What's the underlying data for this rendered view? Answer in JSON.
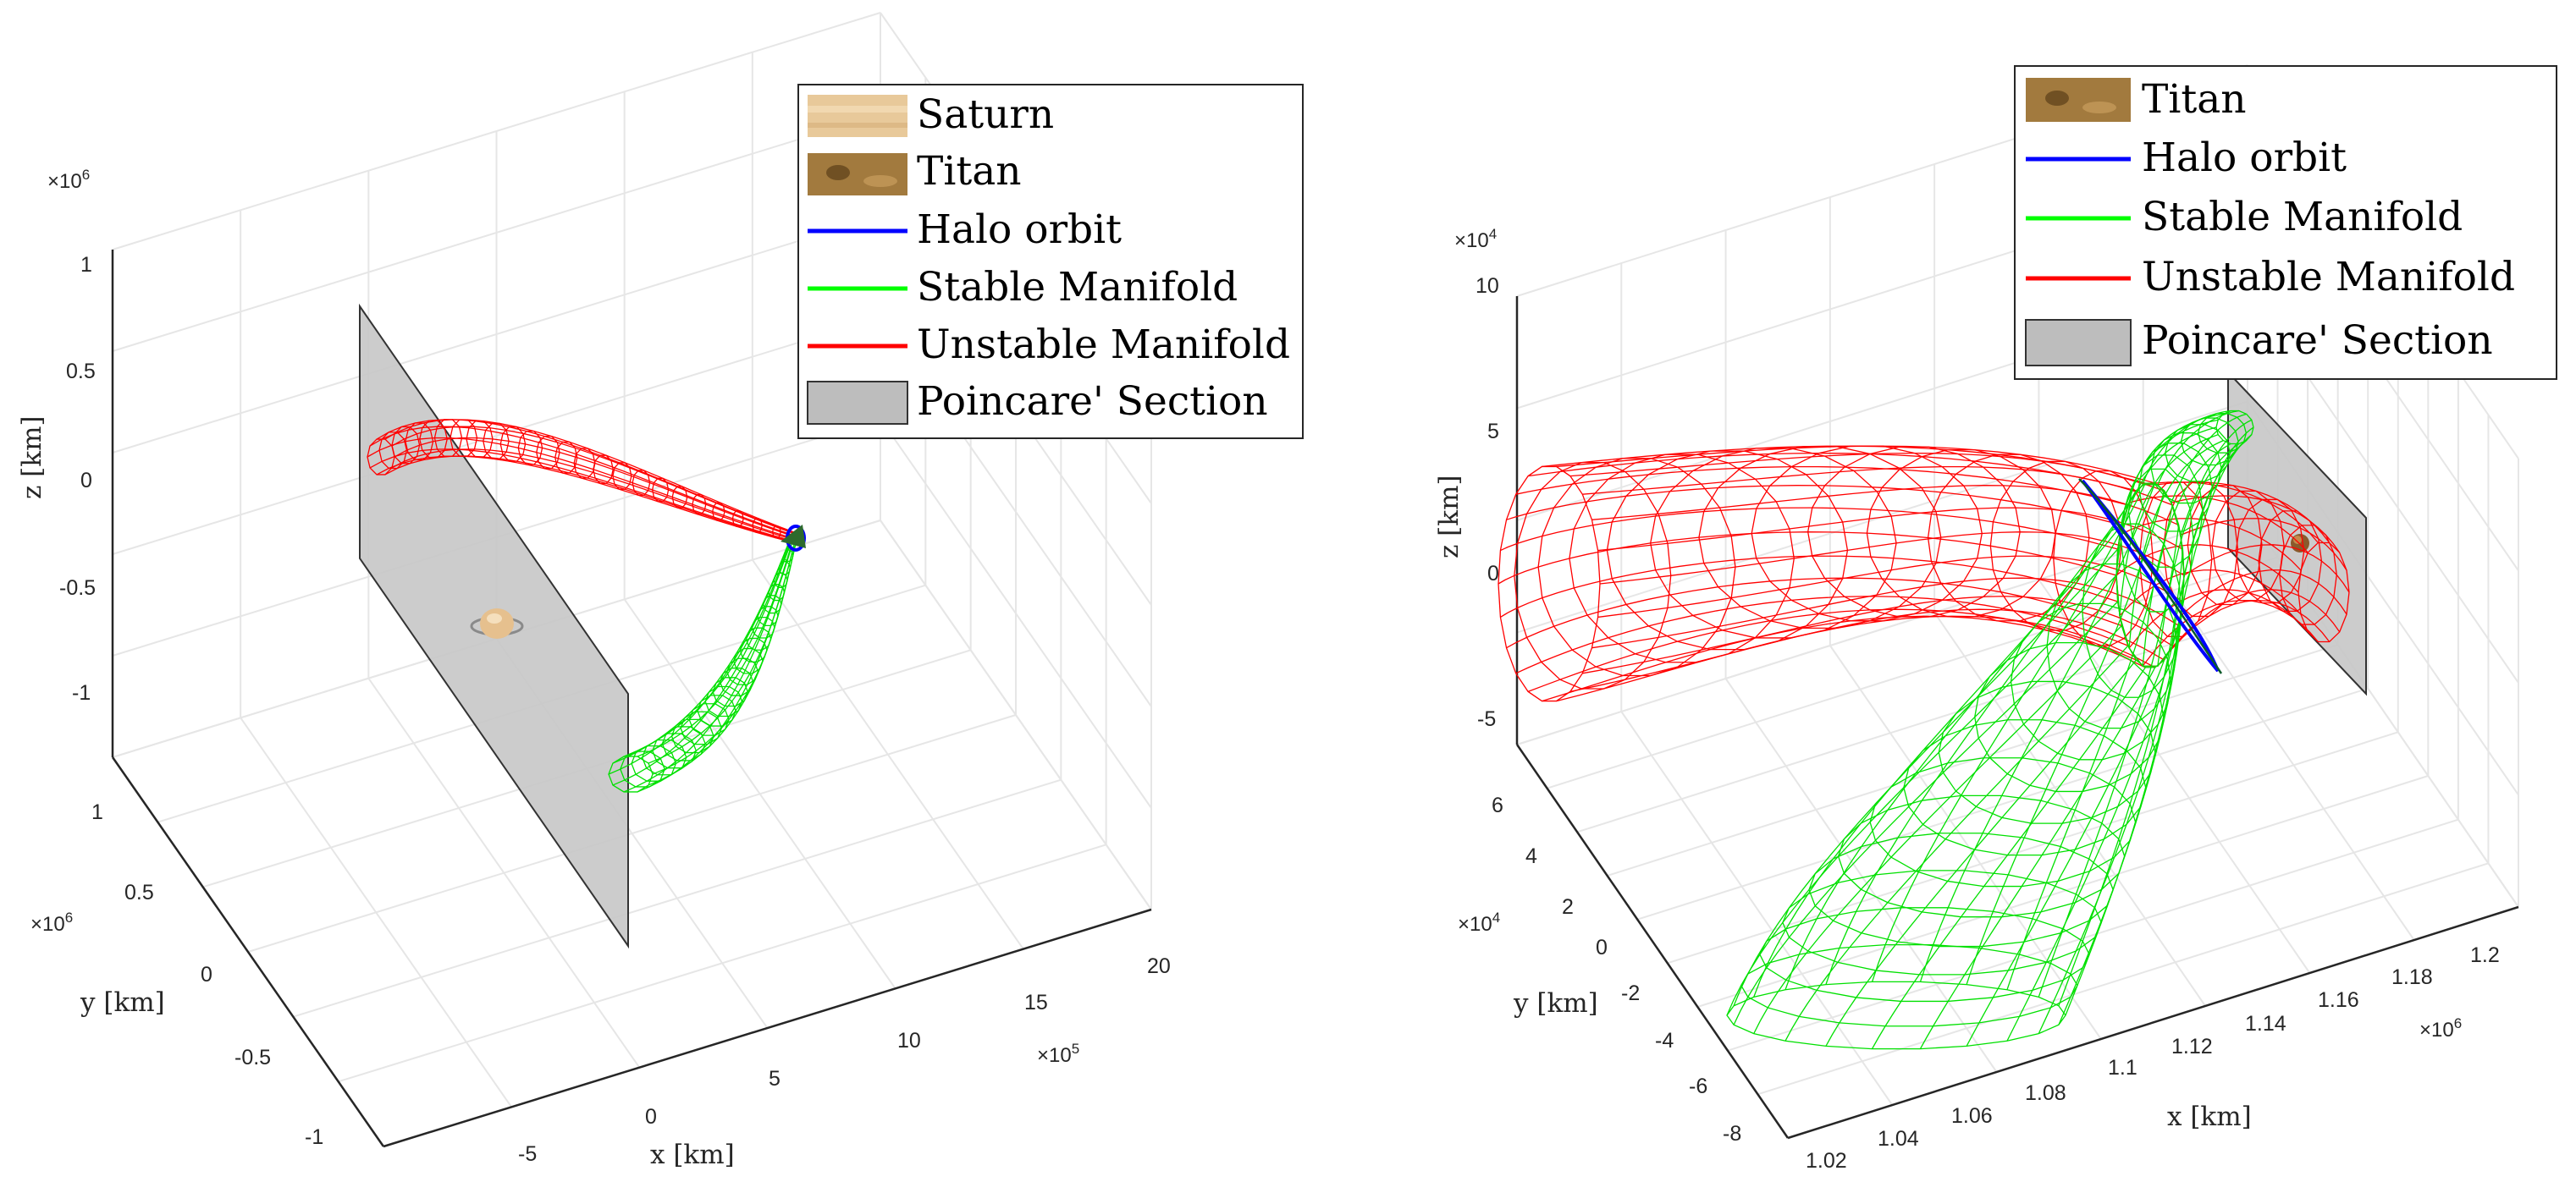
{
  "chart_data": [
    {
      "type": "line",
      "subtype": "3d-trajectory",
      "title": "",
      "xlabel": "x [km]",
      "ylabel": "y [km]",
      "zlabel": "z [km]",
      "x_exponent": "×10",
      "x_exponent_power": "5",
      "y_exponent": "×10",
      "y_exponent_power": "6",
      "z_exponent": "×10",
      "z_exponent_power": "6",
      "x_ticks": [
        "-5",
        "0",
        "5",
        "10",
        "15",
        "20"
      ],
      "y_ticks": [
        "1",
        "0.5",
        "0",
        "-0.5",
        "-1"
      ],
      "z_ticks": [
        "1",
        "0.5",
        "0",
        "-0.5",
        "-1"
      ],
      "grid": true,
      "legend_position": "top-right",
      "legend": [
        "Saturn",
        "Titan",
        "Halo orbit",
        "Stable Manifold",
        "Unstable Manifold",
        "Poincare' Section"
      ],
      "colors": {
        "halo": "#0000ff",
        "stable": "#00ff00",
        "unstable": "#ff0000",
        "section": "#bdbdbd",
        "saturn": "#e8c99a",
        "titan": "#a27a3e"
      }
    },
    {
      "type": "line",
      "subtype": "3d-trajectory",
      "title": "",
      "xlabel": "x [km]",
      "ylabel": "y [km]",
      "zlabel": "z [km]",
      "x_exponent": "×10",
      "x_exponent_power": "6",
      "y_exponent": "×10",
      "y_exponent_power": "4",
      "z_exponent": "×10",
      "z_exponent_power": "4",
      "x_ticks": [
        "1.02",
        "1.04",
        "1.06",
        "1.08",
        "1.1",
        "1.12",
        "1.14",
        "1.16",
        "1.18",
        "1.2"
      ],
      "y_ticks": [
        "6",
        "4",
        "2",
        "0",
        "-2",
        "-4",
        "-6",
        "-8"
      ],
      "z_ticks": [
        "10",
        "5",
        "0",
        "-5"
      ],
      "grid": true,
      "legend_position": "top-right",
      "legend": [
        "Titan",
        "Halo orbit",
        "Stable Manifold",
        "Unstable Manifold",
        "Poincare' Section"
      ],
      "colors": {
        "halo": "#0000ff",
        "stable": "#00ff00",
        "unstable": "#ff0000",
        "section": "#bdbdbd",
        "titan": "#a27a3e"
      }
    }
  ]
}
